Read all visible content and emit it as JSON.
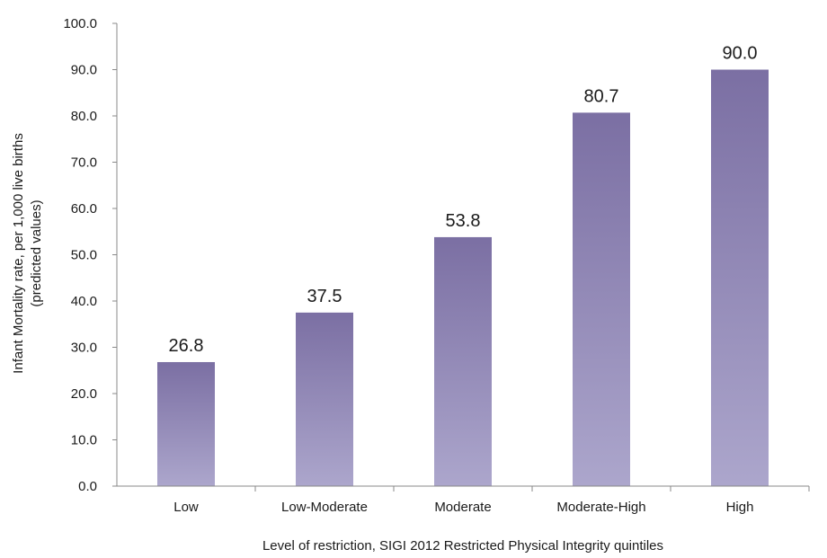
{
  "chart_data": {
    "type": "bar",
    "categories": [
      "Low",
      "Low-Moderate",
      "Moderate",
      "Moderate-High",
      "High"
    ],
    "values": [
      26.8,
      37.5,
      53.8,
      80.7,
      90.0
    ],
    "value_labels": [
      "26.8",
      "37.5",
      "53.8",
      "80.7",
      "90.0"
    ],
    "ylabel_lines": [
      "Infant Mortality rate,  per 1,000 live births",
      "(predicted values)"
    ],
    "xlabel": "Level of restriction, SIGI 2012 Restricted Physical Integrity quintiles",
    "ylim": [
      0,
      100
    ],
    "yticks": [
      "0.0",
      "10.0",
      "20.0",
      "30.0",
      "40.0",
      "50.0",
      "60.0",
      "70.0",
      "80.0",
      "90.0",
      "100.0"
    ],
    "grid": false,
    "legend": "none",
    "colors": {
      "bar_top": "#7b6fa3",
      "bar_bottom": "#aca6cc",
      "axis": "#888888"
    }
  }
}
